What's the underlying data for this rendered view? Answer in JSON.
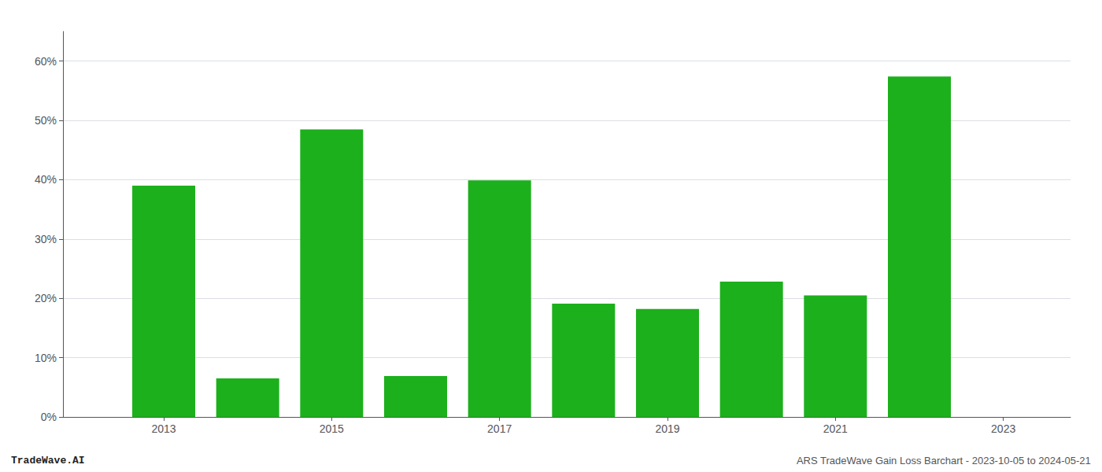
{
  "chart_data": {
    "type": "bar",
    "x": [
      2013,
      2014,
      2015,
      2016,
      2017,
      2018,
      2019,
      2020,
      2021,
      2022
    ],
    "values": [
      0.39,
      0.065,
      0.485,
      0.069,
      0.399,
      0.191,
      0.182,
      0.228,
      0.205,
      0.574
    ],
    "color": "#1cb01c",
    "xlim": [
      2011.8,
      2023.8
    ],
    "xticks": [
      2013,
      2015,
      2017,
      2019,
      2021,
      2023
    ],
    "ylim": [
      0,
      0.65
    ],
    "yticks": [
      {
        "value": 0,
        "label": "0%"
      },
      {
        "value": 0.1,
        "label": "10%"
      },
      {
        "value": 0.2,
        "label": "20%"
      },
      {
        "value": 0.3,
        "label": "30%"
      },
      {
        "value": 0.4,
        "label": "40%"
      },
      {
        "value": 0.5,
        "label": "50%"
      },
      {
        "value": 0.6,
        "label": "60%"
      }
    ],
    "grid": true,
    "annotations": [
      "TradeWave.AI",
      "ARS TradeWave Gain Loss Barchart - 2023-10-05 to 2024-05-21"
    ]
  }
}
